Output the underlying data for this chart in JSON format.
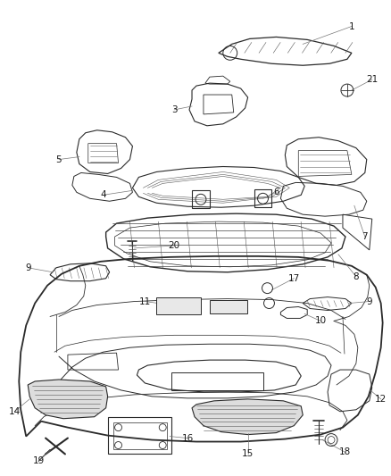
{
  "background_color": "#ffffff",
  "line_color": "#2a2a2a",
  "label_color": "#1a1a1a",
  "leader_line_color": "#777777",
  "fig_width": 4.38,
  "fig_height": 5.33,
  "dpi": 100
}
